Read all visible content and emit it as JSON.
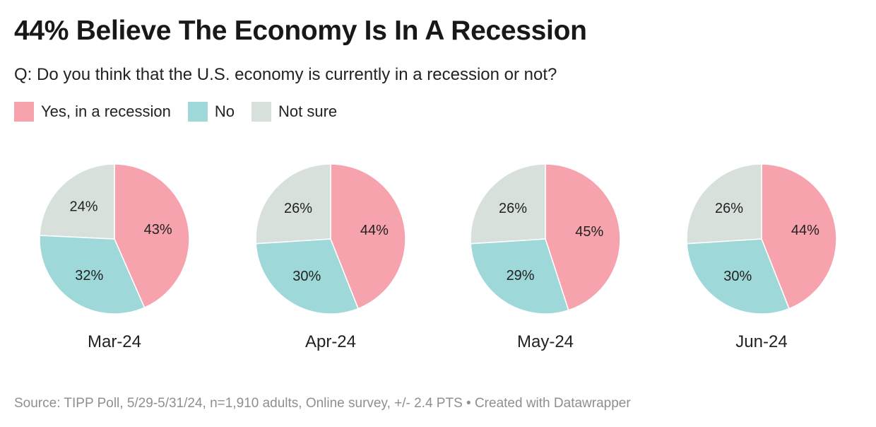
{
  "title": "44% Believe The Economy Is In A Recession",
  "subtitle": "Q: Do you think that the U.S. economy is currently in a recession or not?",
  "legend": [
    {
      "label": "Yes, in a recession",
      "color": "#f7a3ae"
    },
    {
      "label": "No",
      "color": "#9ed8d8"
    },
    {
      "label": "Not sure",
      "color": "#d7e0db"
    }
  ],
  "source": "Source: TIPP Poll, 5/29-5/31/24, n=1,910 adults, Online survey, +/- 2.4 PTS • Created with Datawrapper",
  "chart_data": [
    {
      "type": "pie",
      "title": "Mar-24",
      "labels": [
        "Yes, in a recession",
        "No",
        "Not sure"
      ],
      "values": [
        43,
        32,
        24
      ],
      "display": [
        "43%",
        "32%",
        "24%"
      ]
    },
    {
      "type": "pie",
      "title": "Apr-24",
      "labels": [
        "Yes, in a recession",
        "No",
        "Not sure"
      ],
      "values": [
        44,
        30,
        26
      ],
      "display": [
        "44%",
        "30%",
        "26%"
      ]
    },
    {
      "type": "pie",
      "title": "May-24",
      "labels": [
        "Yes, in a recession",
        "No",
        "Not sure"
      ],
      "values": [
        45,
        29,
        26
      ],
      "display": [
        "45%",
        "29%",
        "26%"
      ]
    },
    {
      "type": "pie",
      "title": "Jun-24",
      "labels": [
        "Yes, in a recession",
        "No",
        "Not sure"
      ],
      "values": [
        44,
        30,
        26
      ],
      "display": [
        "44%",
        "30%",
        "26%"
      ]
    }
  ]
}
